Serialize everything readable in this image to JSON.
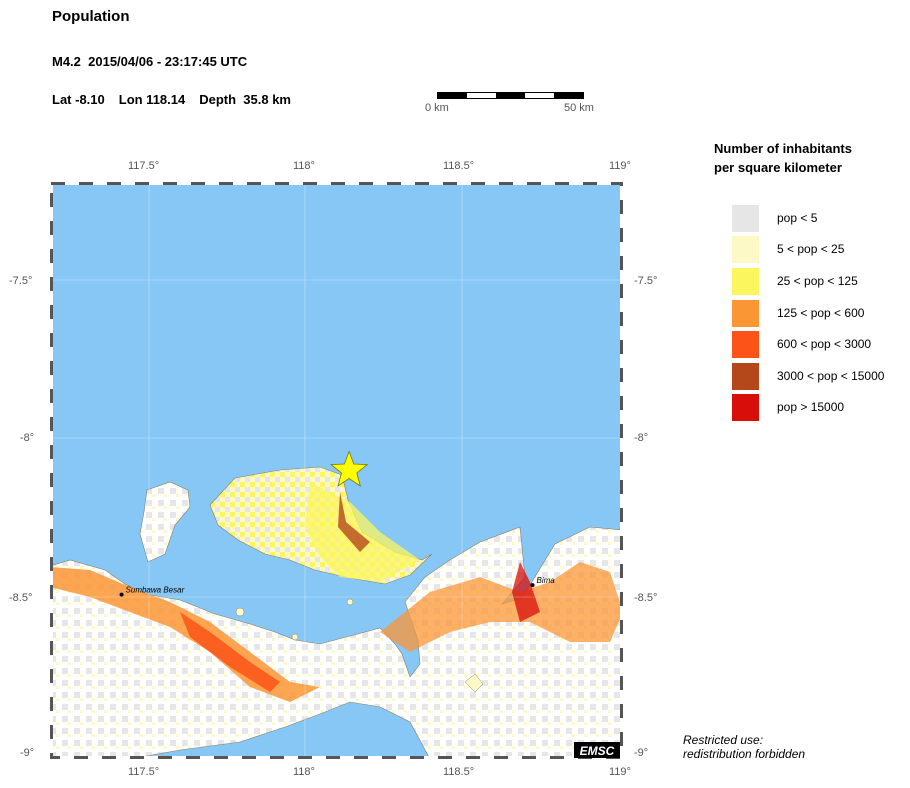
{
  "title": "Population",
  "event": {
    "magnitude": "M4.2",
    "datetime": "2015/04/06 - 23:17:45 UTC"
  },
  "location": {
    "lat": "Lat -8.10",
    "lon": "Lon 118.14",
    "depth": "Depth  35.8 km"
  },
  "scale_bar": {
    "start_label": "0 km",
    "end_label": "50 km"
  },
  "axes": {
    "lon_ticks": [
      "117.5°",
      "118°",
      "118.5°",
      "119°"
    ],
    "lat_ticks": [
      "-7.5°",
      "-8°",
      "-8.5°",
      "-9°"
    ]
  },
  "map": {
    "epicenter": {
      "lat": -8.1,
      "lon": 118.14,
      "marker": "star-icon",
      "color": "#ffff00"
    },
    "cities": [
      {
        "name": "Sumbawa Besar",
        "lat": -8.49,
        "lon": 117.42
      },
      {
        "name": "Bima",
        "lat": -8.46,
        "lon": 118.72
      }
    ],
    "sea_color": "#87c7f5",
    "credit": "EMSC"
  },
  "legend": {
    "title_line1": "Number of inhabitants",
    "title_line2": "per square kilometer",
    "items": [
      {
        "label": "pop < 5",
        "color": "#e6e6e6"
      },
      {
        "label": "5 < pop < 25",
        "color": "#fdf9c6"
      },
      {
        "label": "25 < pop < 125",
        "color": "#fbf55e"
      },
      {
        "label": "125 < pop < 600",
        "color": "#fb9635"
      },
      {
        "label": "600 < pop < 3000",
        "color": "#fc5319"
      },
      {
        "label": "3000 < pop < 15000",
        "color": "#b5481b"
      },
      {
        "label": "pop > 15000",
        "color": "#d80e0b"
      }
    ]
  },
  "notice_line1": "Restricted use:",
  "notice_line2": "redistribution forbidden"
}
